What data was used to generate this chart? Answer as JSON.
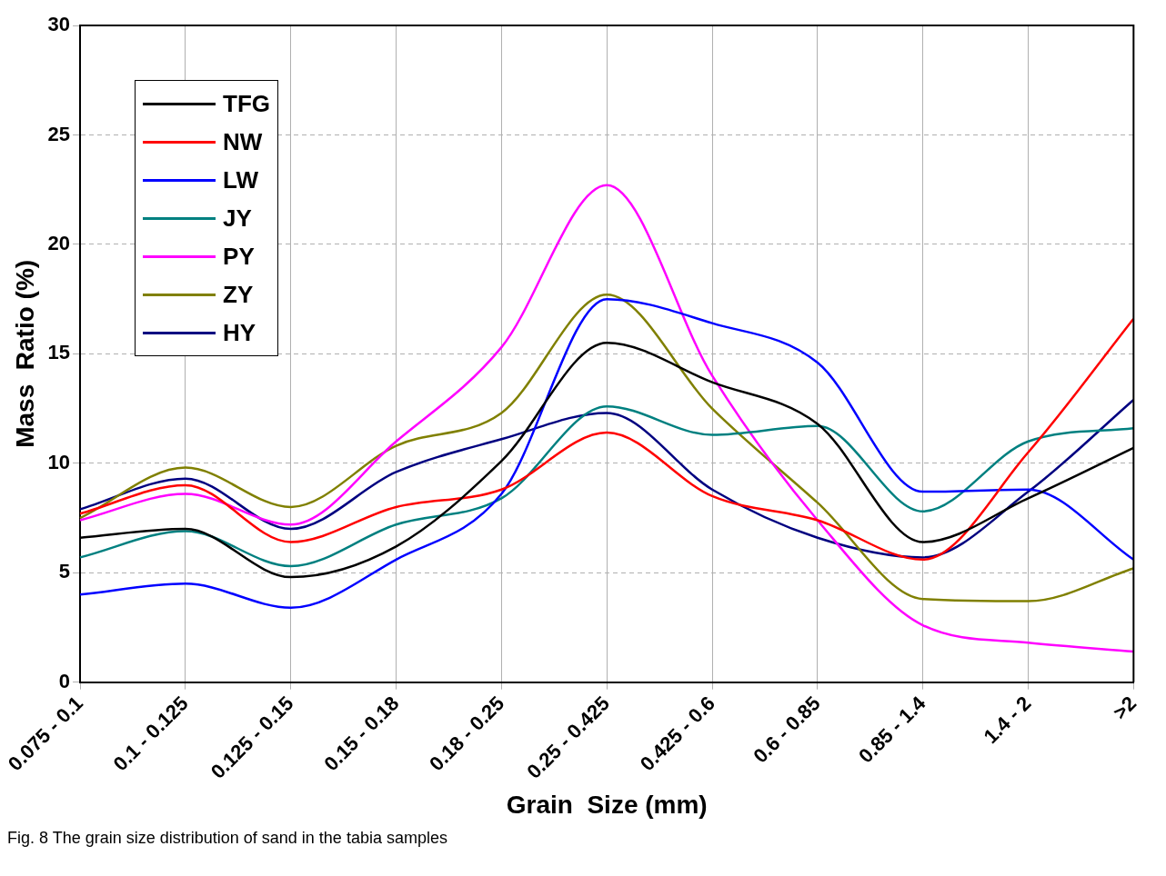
{
  "chart_data": {
    "type": "line",
    "xlabel": "Grain  Size (mm)",
    "ylabel": "Mass  Ratio (%)",
    "categories": [
      "0.075 - 0.1",
      "0.1 - 0.125",
      "0.125 - 0.15",
      "0.15 - 0.18",
      "0.18 - 0.25",
      "0.25 - 0.425",
      "0.425 - 0.6",
      "0.6 - 0.85",
      "0.85 - 1.4",
      "1.4 - 2",
      ">2"
    ],
    "series": [
      {
        "name": "TFG",
        "color": "#000000",
        "values": [
          6.6,
          7.0,
          4.8,
          6.2,
          10.1,
          15.5,
          13.7,
          11.8,
          6.4,
          8.4,
          10.7
        ]
      },
      {
        "name": "NW",
        "color": "#ff0000",
        "values": [
          7.7,
          9.0,
          6.4,
          8.0,
          8.8,
          11.4,
          8.5,
          7.4,
          5.6,
          10.5,
          16.6
        ]
      },
      {
        "name": "LW",
        "color": "#0000ff",
        "values": [
          4.0,
          4.5,
          3.4,
          5.6,
          8.6,
          17.5,
          16.4,
          14.6,
          8.7,
          8.8,
          5.6
        ]
      },
      {
        "name": "JY",
        "color": "#008080",
        "values": [
          5.7,
          6.9,
          5.3,
          7.2,
          8.4,
          12.6,
          11.3,
          11.7,
          7.8,
          11.0,
          11.6
        ]
      },
      {
        "name": "PY",
        "color": "#ff00ff",
        "values": [
          7.4,
          8.6,
          7.2,
          11.0,
          15.3,
          22.7,
          14.0,
          7.4,
          2.6,
          1.8,
          1.4
        ]
      },
      {
        "name": "ZY",
        "color": "#808000",
        "values": [
          7.5,
          9.8,
          8.0,
          10.8,
          12.3,
          17.7,
          12.5,
          8.2,
          3.8,
          3.7,
          5.2
        ]
      },
      {
        "name": "HY",
        "color": "#000080",
        "values": [
          7.9,
          9.3,
          7.0,
          9.6,
          11.1,
          12.3,
          8.8,
          6.6,
          5.7,
          8.7,
          12.9
        ]
      }
    ],
    "ylim": [
      0,
      30
    ],
    "yticks": [
      0,
      5,
      10,
      15,
      20,
      25,
      30
    ],
    "grid": true,
    "legend": "top left",
    "line_style": "solid",
    "marker": "none",
    "annotations": [
      "Fig. 8 The grain size distribution of sand in the tabia samples"
    ]
  }
}
